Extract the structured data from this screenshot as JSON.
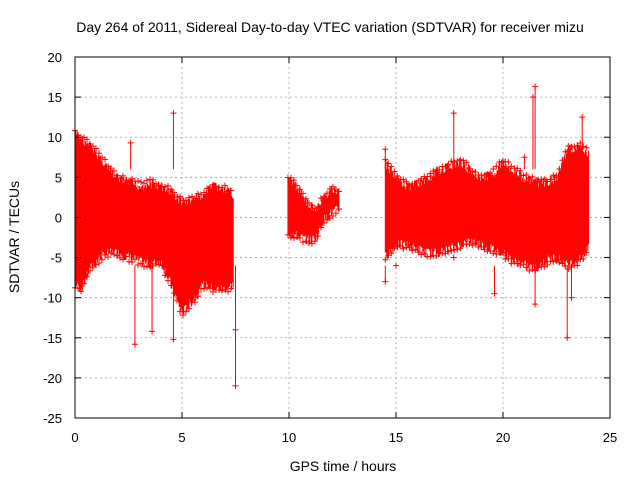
{
  "chart_data": {
    "type": "scatter",
    "title": "Day 264 of 2011, Sidereal Day-to-day VTEC variation (SDTVAR) for receiver mizu",
    "xlabel": "GPS time / hours",
    "ylabel": "SDTVAR / TECUs",
    "xlim": [
      0,
      25
    ],
    "ylim": [
      -25,
      20
    ],
    "xticks": [
      0,
      5,
      10,
      15,
      20,
      25
    ],
    "yticks": [
      -25,
      -20,
      -15,
      -10,
      -5,
      0,
      5,
      10,
      15,
      20
    ],
    "grid": true,
    "marker": "+",
    "color": "#ff0000",
    "segments": [
      {
        "name": "block-1",
        "x": [
          0.0,
          0.3,
          0.7,
          1.2,
          1.6,
          2.0,
          2.5,
          3.0,
          3.5,
          4.0,
          4.5,
          5.0,
          5.5,
          6.0,
          6.5,
          7.0,
          7.4
        ],
        "upper": [
          11.0,
          10.5,
          9.5,
          8.0,
          6.5,
          5.5,
          5.0,
          4.5,
          4.8,
          4.5,
          3.8,
          2.5,
          2.8,
          3.5,
          4.5,
          4.0,
          3.5
        ],
        "lower": [
          -9.0,
          -9.5,
          -7.0,
          -5.5,
          -5.0,
          -5.0,
          -5.5,
          -6.0,
          -6.5,
          -6.0,
          -9.0,
          -12.5,
          -11.0,
          -9.0,
          -9.5,
          -9.5,
          -9.0
        ]
      },
      {
        "name": "block-2",
        "x": [
          9.95,
          10.5,
          11.0,
          11.3,
          11.6,
          12.0,
          12.35
        ],
        "upper": [
          5.5,
          4.0,
          2.0,
          1.5,
          3.0,
          4.2,
          3.5
        ],
        "lower": [
          -2.5,
          -3.0,
          -3.5,
          -3.0,
          -1.0,
          0.0,
          0.5
        ]
      },
      {
        "name": "block-3",
        "x": [
          14.5,
          15.0,
          15.5,
          16.0,
          16.5,
          17.0,
          17.5,
          18.0,
          18.5,
          19.0,
          19.5,
          20.0,
          20.5,
          21.0,
          21.5,
          22.0,
          22.5,
          23.0,
          23.5,
          24.0
        ],
        "upper": [
          7.5,
          5.5,
          4.5,
          4.8,
          5.5,
          6.5,
          7.0,
          7.5,
          6.5,
          5.5,
          6.0,
          7.5,
          6.5,
          5.5,
          5.0,
          5.0,
          5.5,
          9.0,
          9.5,
          8.5
        ],
        "lower": [
          -5.5,
          -4.0,
          -4.0,
          -4.5,
          -5.0,
          -5.0,
          -4.5,
          -4.0,
          -3.5,
          -4.0,
          -4.5,
          -5.0,
          -6.0,
          -6.5,
          -7.0,
          -6.0,
          -5.5,
          -6.5,
          -6.0,
          -4.5
        ]
      }
    ],
    "outliers": [
      {
        "x": 2.6,
        "y": 9.3
      },
      {
        "x": 2.8,
        "y": -15.8
      },
      {
        "x": 3.6,
        "y": -14.2
      },
      {
        "x": 4.6,
        "y": 13.0
      },
      {
        "x": 4.6,
        "y": -15.2
      },
      {
        "x": 7.5,
        "y": -21.0
      },
      {
        "x": 7.5,
        "y": -14.0
      },
      {
        "x": 14.5,
        "y": 8.5
      },
      {
        "x": 14.5,
        "y": -8.0
      },
      {
        "x": 15.0,
        "y": -6.0
      },
      {
        "x": 17.7,
        "y": 13.0
      },
      {
        "x": 17.7,
        "y": -5.0
      },
      {
        "x": 19.6,
        "y": -9.5
      },
      {
        "x": 21.0,
        "y": 7.5
      },
      {
        "x": 21.4,
        "y": 15.0
      },
      {
        "x": 21.5,
        "y": 16.3
      },
      {
        "x": 21.5,
        "y": -10.8
      },
      {
        "x": 23.0,
        "y": -15.0
      },
      {
        "x": 23.2,
        "y": -10.0
      },
      {
        "x": 23.7,
        "y": 12.5
      }
    ]
  }
}
